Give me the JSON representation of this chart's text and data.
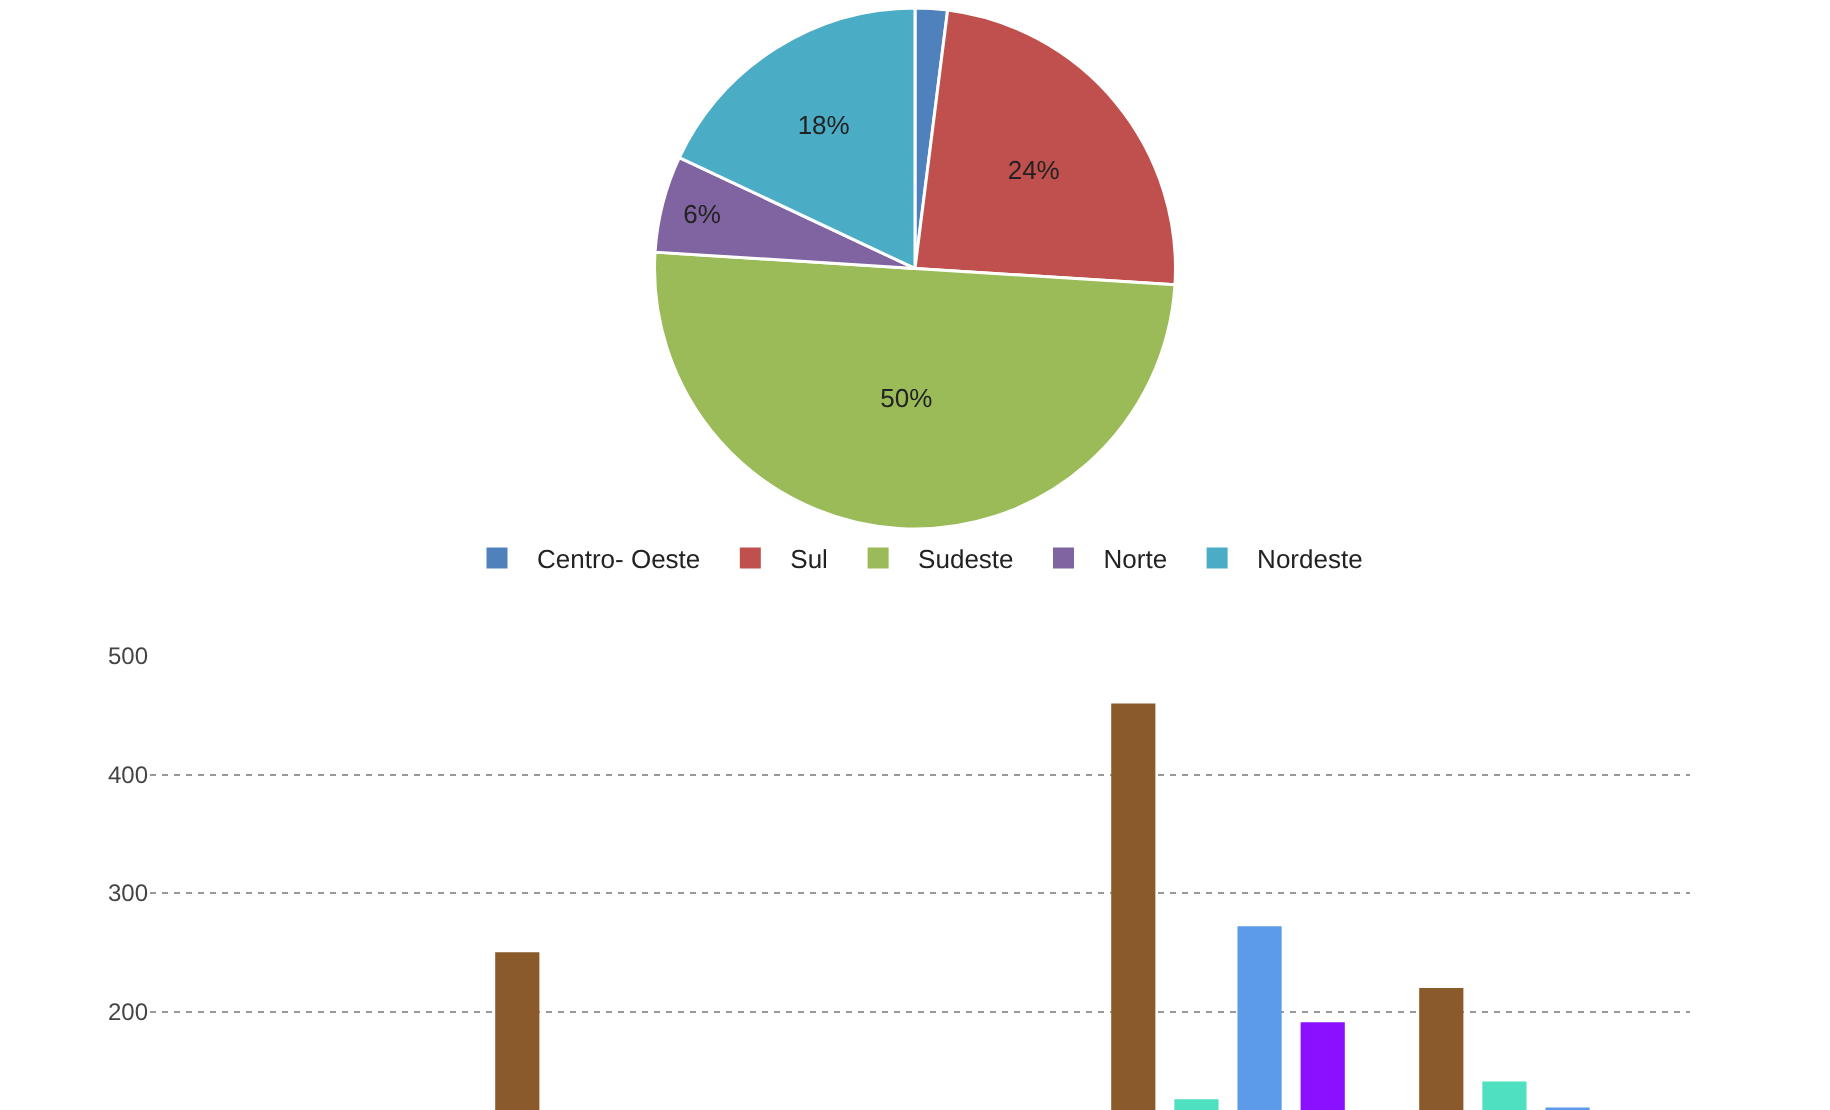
{
  "chart_data": [
    {
      "type": "pie",
      "categories": [
        "Centro- Oeste",
        "Sul",
        "Sudeste",
        "Norte",
        "Nordeste"
      ],
      "values": [
        2,
        24,
        50,
        6,
        18
      ],
      "value_labels": [
        null,
        "24%",
        "50%",
        "6%",
        "18%"
      ],
      "colors": [
        "#4f81bd",
        "#c0504d",
        "#9bbb59",
        "#8064a2",
        "#4bacc6"
      ],
      "legend": "bottom"
    },
    {
      "type": "bar",
      "categories": [
        null,
        null,
        null,
        null,
        null
      ],
      "series": [
        {
          "color": "#8b5a2b",
          "values": [
            null,
            250,
            null,
            460,
            220
          ]
        },
        {
          "color": "#4ee0c0",
          "values": [
            null,
            null,
            null,
            126,
            141
          ]
        },
        {
          "color": "#5b9be8",
          "values": [
            null,
            null,
            null,
            272,
            119
          ]
        },
        {
          "color": "#8b10ff",
          "values": [
            null,
            null,
            null,
            191,
            null
          ]
        }
      ],
      "ylim": [
        117,
        500
      ],
      "yticks": [
        200,
        300,
        400,
        500
      ],
      "grid": "y",
      "legend": false
    }
  ]
}
